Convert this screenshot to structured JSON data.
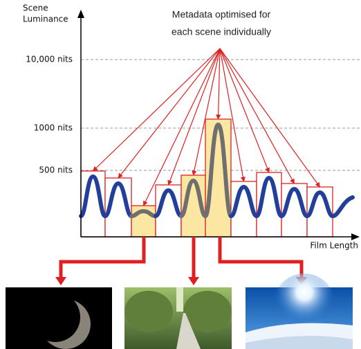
{
  "y_axis": {
    "label_lines": [
      "Scene",
      "Luminance"
    ],
    "ticks": [
      "10,000 nits",
      "1000 nits",
      "500 nits"
    ]
  },
  "x_axis": {
    "label": "Film Length"
  },
  "annotation": {
    "lines": [
      "Metadata optimised for",
      "each scene individually"
    ]
  }
}
